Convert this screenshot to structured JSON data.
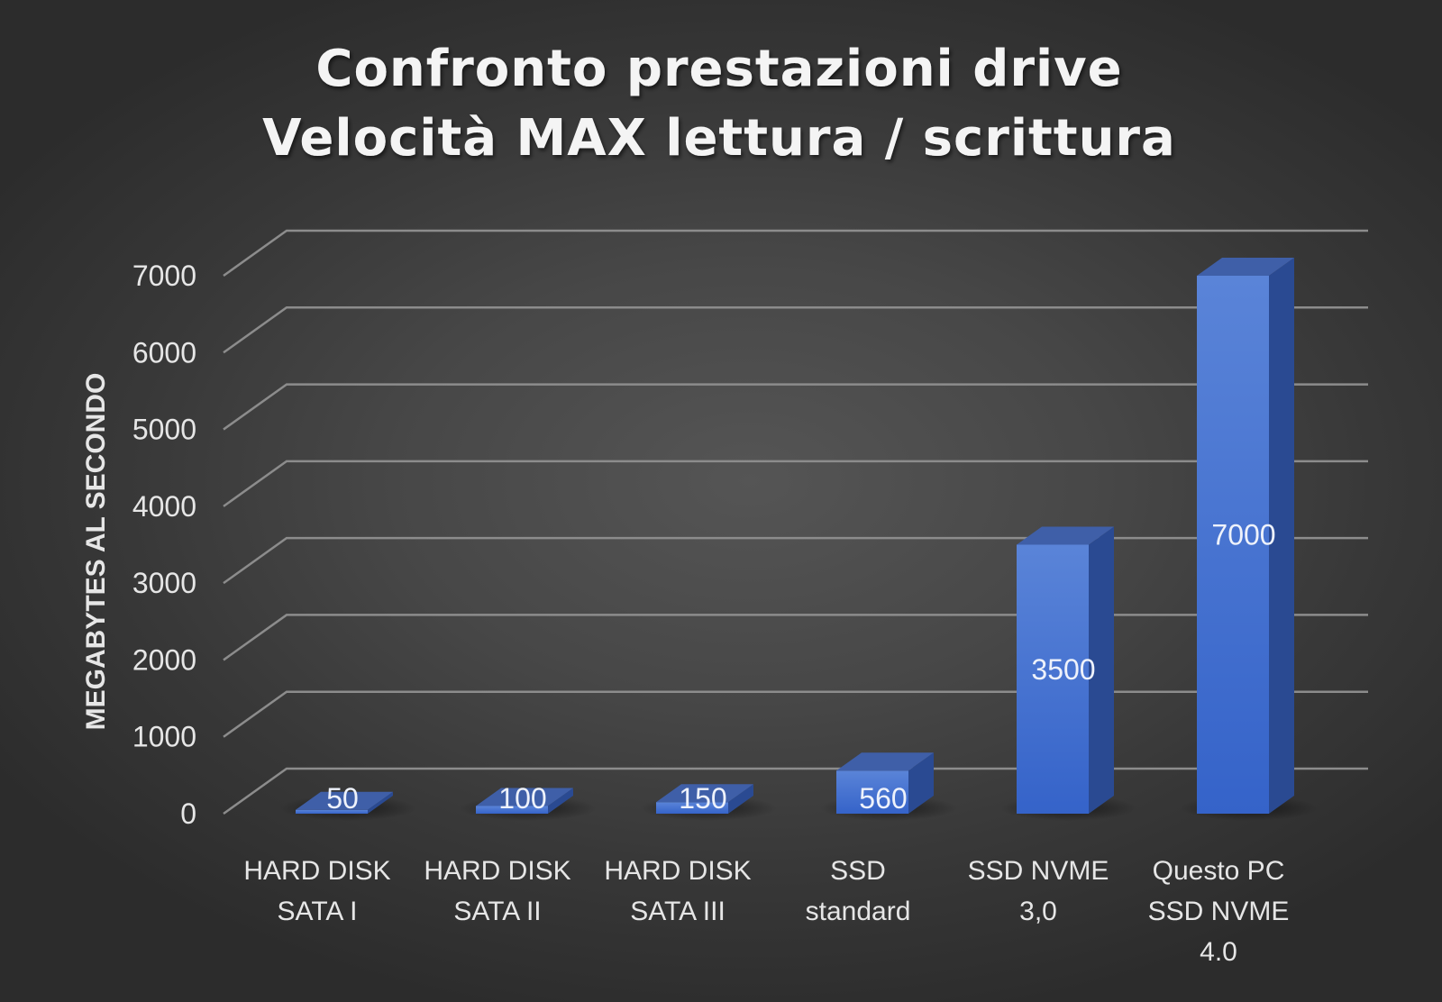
{
  "chart_data": {
    "type": "bar",
    "title": [
      "Confronto prestazioni drive",
      "Velocità MAX lettura / scrittura"
    ],
    "ylabel": "MEGABYTES AL SECONDO",
    "xlabel": "",
    "categories": [
      [
        "HARD DISK",
        "SATA I"
      ],
      [
        "HARD DISK",
        "SATA II"
      ],
      [
        "HARD DISK",
        "SATA III"
      ],
      [
        "SSD",
        "standard"
      ],
      [
        "SSD NVME",
        "3,0"
      ],
      [
        "Questo PC",
        "SSD NVME",
        "4.0"
      ]
    ],
    "values": [
      50,
      100,
      150,
      560,
      3500,
      7000
    ],
    "data_labels": [
      "50",
      "100",
      "150",
      "560",
      "3500",
      "7000"
    ],
    "yticks": [
      "0",
      "1000",
      "2000",
      "3000",
      "4000",
      "5000",
      "6000",
      "7000"
    ],
    "ylim": [
      0,
      7000
    ],
    "grid": true,
    "style": "3d-column",
    "colors": {
      "bar_front": "#3f6ed0",
      "bar_top": "#3f5fa8",
      "bar_side": "#2a4a92",
      "grid": "#8c8c8c",
      "text": "#e6e6e6"
    }
  }
}
